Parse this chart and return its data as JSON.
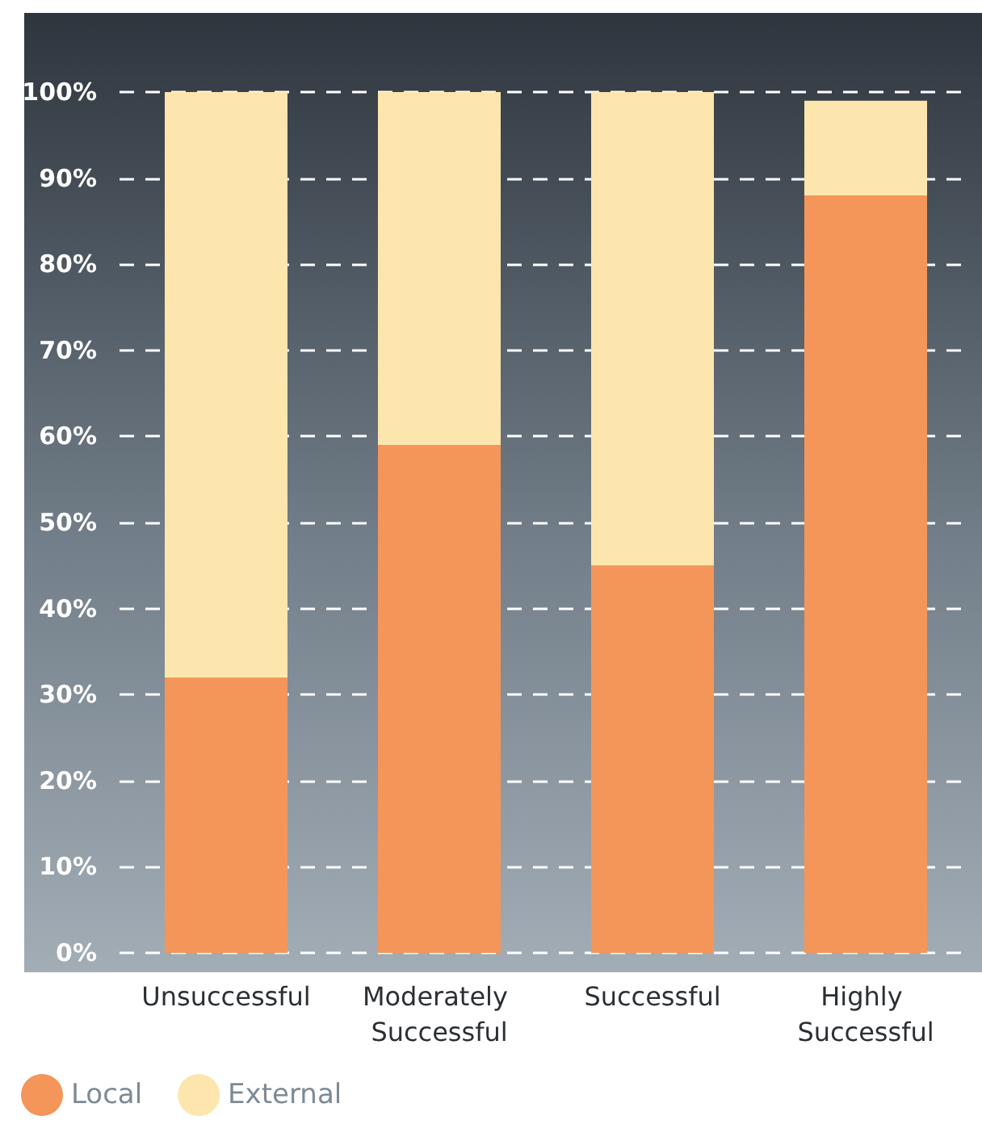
{
  "chart_data": {
    "type": "bar",
    "stacked": true,
    "categories": [
      "Unsuccessful",
      "Moderately Successful",
      "Successful",
      "Highly Successful"
    ],
    "series": [
      {
        "name": "Local",
        "color": "#f4965a",
        "values": [
          32,
          59,
          45,
          88
        ]
      },
      {
        "name": "External",
        "color": "#fde5ae",
        "values": [
          68,
          41,
          55,
          11
        ]
      }
    ],
    "ylim": [
      0,
      100
    ],
    "yticks": [
      {
        "value": 0,
        "label": "0%"
      },
      {
        "value": 10,
        "label": "10%"
      },
      {
        "value": 20,
        "label": "20%"
      },
      {
        "value": 30,
        "label": "30%"
      },
      {
        "value": 40,
        "label": "40%"
      },
      {
        "value": 50,
        "label": "50%"
      },
      {
        "value": 60,
        "label": "60%"
      },
      {
        "value": 70,
        "label": "70%"
      },
      {
        "value": 80,
        "label": "80%"
      },
      {
        "value": 90,
        "label": "90%"
      },
      {
        "value": 100,
        "label": "100%"
      }
    ],
    "grid": "y",
    "legend": "bottom left"
  }
}
